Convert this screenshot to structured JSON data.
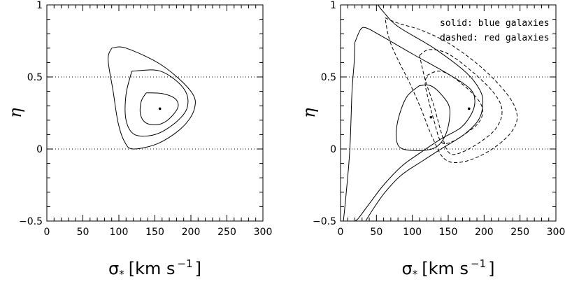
{
  "chart_data": [
    {
      "type": "contour",
      "panel": "left",
      "xlabel": "σ",
      "xlabel_sub": "*",
      "xlabel_units": "[km s",
      "xlabel_exp": "−1",
      "xlabel_close": "]",
      "ylabel": "η",
      "xlim": [
        0,
        300
      ],
      "ylim": [
        -0.5,
        1
      ],
      "xticks": [
        0,
        50,
        100,
        150,
        200,
        250,
        300
      ],
      "yticks": [
        -0.5,
        0,
        0.5,
        1
      ],
      "xtick_labels": [
        "0",
        "50",
        "100",
        "150",
        "200",
        "250",
        "300"
      ],
      "ytick_labels": [
        "−0.5",
        "0",
        "0.5",
        "1"
      ],
      "hlines": [
        0,
        0.5
      ],
      "points": [
        [
          157,
          0.28
        ]
      ],
      "contours": [
        {
          "style": "solid",
          "points": [
            [
              138,
              0.39
            ],
            [
              160,
              0.385
            ],
            [
              178,
              0.35
            ],
            [
              182,
              0.29
            ],
            [
              170,
              0.21
            ],
            [
              155,
              0.17
            ],
            [
              138,
              0.18
            ],
            [
              130,
              0.24
            ],
            [
              131,
              0.33
            ],
            [
              138,
              0.39
            ]
          ]
        },
        {
          "style": "solid",
          "points": [
            [
              118,
              0.54
            ],
            [
              158,
              0.54
            ],
            [
              190,
              0.42
            ],
            [
              195,
              0.29
            ],
            [
              178,
              0.18
            ],
            [
              150,
              0.1
            ],
            [
              122,
              0.1
            ],
            [
              110,
              0.2
            ],
            [
              110,
              0.38
            ],
            [
              118,
              0.54
            ]
          ]
        },
        {
          "style": "solid",
          "points": [
            [
              90,
              0.7
            ],
            [
              110,
              0.7
            ],
            [
              160,
              0.58
            ],
            [
              200,
              0.4
            ],
            [
              205,
              0.28
            ],
            [
              188,
              0.15
            ],
            [
              155,
              0.04
            ],
            [
              120,
              0.0
            ],
            [
              108,
              0.05
            ],
            [
              99,
              0.18
            ],
            [
              92,
              0.4
            ],
            [
              85,
              0.62
            ],
            [
              90,
              0.7
            ]
          ]
        }
      ]
    },
    {
      "type": "contour",
      "panel": "right",
      "xlabel": "σ",
      "xlabel_sub": "*",
      "xlabel_units": "[km s",
      "xlabel_exp": "−1",
      "xlabel_close": "]",
      "ylabel": "η",
      "xlim": [
        0,
        300
      ],
      "ylim": [
        -0.5,
        1
      ],
      "xticks": [
        0,
        50,
        100,
        150,
        200,
        250,
        300
      ],
      "yticks": [
        -0.5,
        0,
        0.5,
        1
      ],
      "xtick_labels": [
        "0",
        "50",
        "100",
        "150",
        "200",
        "250",
        "300"
      ],
      "ytick_labels": [
        "−0.5",
        "0",
        "0.5",
        "1"
      ],
      "hlines": [
        0,
        0.5
      ],
      "legend": [
        "solid: blue galaxies",
        "dashed: red galaxies"
      ],
      "points": [
        [
          126,
          0.22
        ],
        [
          179,
          0.28
        ]
      ],
      "contours": [
        {
          "style": "solid",
          "points": [
            [
              110,
              0.44
            ],
            [
              125,
              0.44
            ],
            [
              140,
              0.38
            ],
            [
              152,
              0.28
            ],
            [
              148,
              0.12
            ],
            [
              135,
              0.02
            ],
            [
              115,
              -0.01
            ],
            [
              87,
              0.0
            ],
            [
              78,
              0.06
            ],
            [
              80,
              0.2
            ],
            [
              92,
              0.36
            ],
            [
              110,
              0.44
            ]
          ]
        },
        {
          "style": "solid",
          "points": [
            [
              20,
              0.74
            ],
            [
              28,
              0.83
            ],
            [
              36,
              0.84
            ],
            [
              55,
              0.79
            ],
            [
              100,
              0.66
            ],
            [
              150,
              0.52
            ],
            [
              180,
              0.42
            ],
            [
              187,
              0.34
            ],
            [
              183,
              0.25
            ],
            [
              168,
              0.15
            ],
            [
              140,
              0.07
            ],
            [
              110,
              -0.03
            ],
            [
              85,
              -0.12
            ],
            [
              60,
              -0.25
            ],
            [
              40,
              -0.38
            ],
            [
              25,
              -0.48
            ],
            [
              20,
              -0.5
            ]
          ]
        },
        {
          "style": "solid",
          "points": [
            [
              4,
              -0.5
            ],
            [
              8,
              -0.3
            ],
            [
              13,
              0.0
            ],
            [
              16,
              0.4
            ],
            [
              19,
              0.6
            ],
            [
              20,
              0.74
            ]
          ]
        },
        {
          "style": "solid",
          "points": [
            [
              52,
              1.0
            ],
            [
              60,
              0.95
            ],
            [
              80,
              0.85
            ],
            [
              130,
              0.7
            ],
            [
              175,
              0.53
            ],
            [
              195,
              0.4
            ],
            [
              198,
              0.3
            ],
            [
              192,
              0.2
            ],
            [
              172,
              0.1
            ],
            [
              140,
              0.0
            ],
            [
              115,
              -0.08
            ],
            [
              85,
              -0.18
            ],
            [
              62,
              -0.3
            ],
            [
              45,
              -0.42
            ],
            [
              35,
              -0.5
            ]
          ]
        },
        {
          "style": "dashed",
          "points": [
            [
              120,
              0.51
            ],
            [
              135,
              0.54
            ],
            [
              150,
              0.52
            ],
            [
              172,
              0.44
            ],
            [
              192,
              0.34
            ],
            [
              198,
              0.26
            ],
            [
              192,
              0.18
            ],
            [
              175,
              0.11
            ],
            [
              155,
              0.05
            ],
            [
              140,
              0.05
            ],
            [
              130,
              0.2
            ],
            [
              122,
              0.35
            ],
            [
              118,
              0.45
            ],
            [
              120,
              0.51
            ]
          ]
        },
        {
          "style": "dashed",
          "points": [
            [
              110,
              0.65
            ],
            [
              124,
              0.69
            ],
            [
              150,
              0.66
            ],
            [
              185,
              0.53
            ],
            [
              215,
              0.38
            ],
            [
              225,
              0.26
            ],
            [
              216,
              0.14
            ],
            [
              192,
              0.04
            ],
            [
              165,
              -0.03
            ],
            [
              150,
              -0.02
            ],
            [
              140,
              0.12
            ],
            [
              130,
              0.3
            ],
            [
              118,
              0.48
            ],
            [
              110,
              0.65
            ]
          ]
        },
        {
          "style": "dashed",
          "points": [
            [
              62,
              0.91
            ],
            [
              82,
              0.87
            ],
            [
              115,
              0.82
            ],
            [
              155,
              0.72
            ],
            [
              200,
              0.55
            ],
            [
              235,
              0.36
            ],
            [
              246,
              0.22
            ],
            [
              235,
              0.1
            ],
            [
              205,
              -0.02
            ],
            [
              170,
              -0.09
            ],
            [
              145,
              -0.07
            ],
            [
              128,
              0.08
            ],
            [
              112,
              0.28
            ],
            [
              96,
              0.46
            ],
            [
              80,
              0.62
            ],
            [
              68,
              0.76
            ],
            [
              62,
              0.91
            ]
          ]
        }
      ]
    }
  ]
}
